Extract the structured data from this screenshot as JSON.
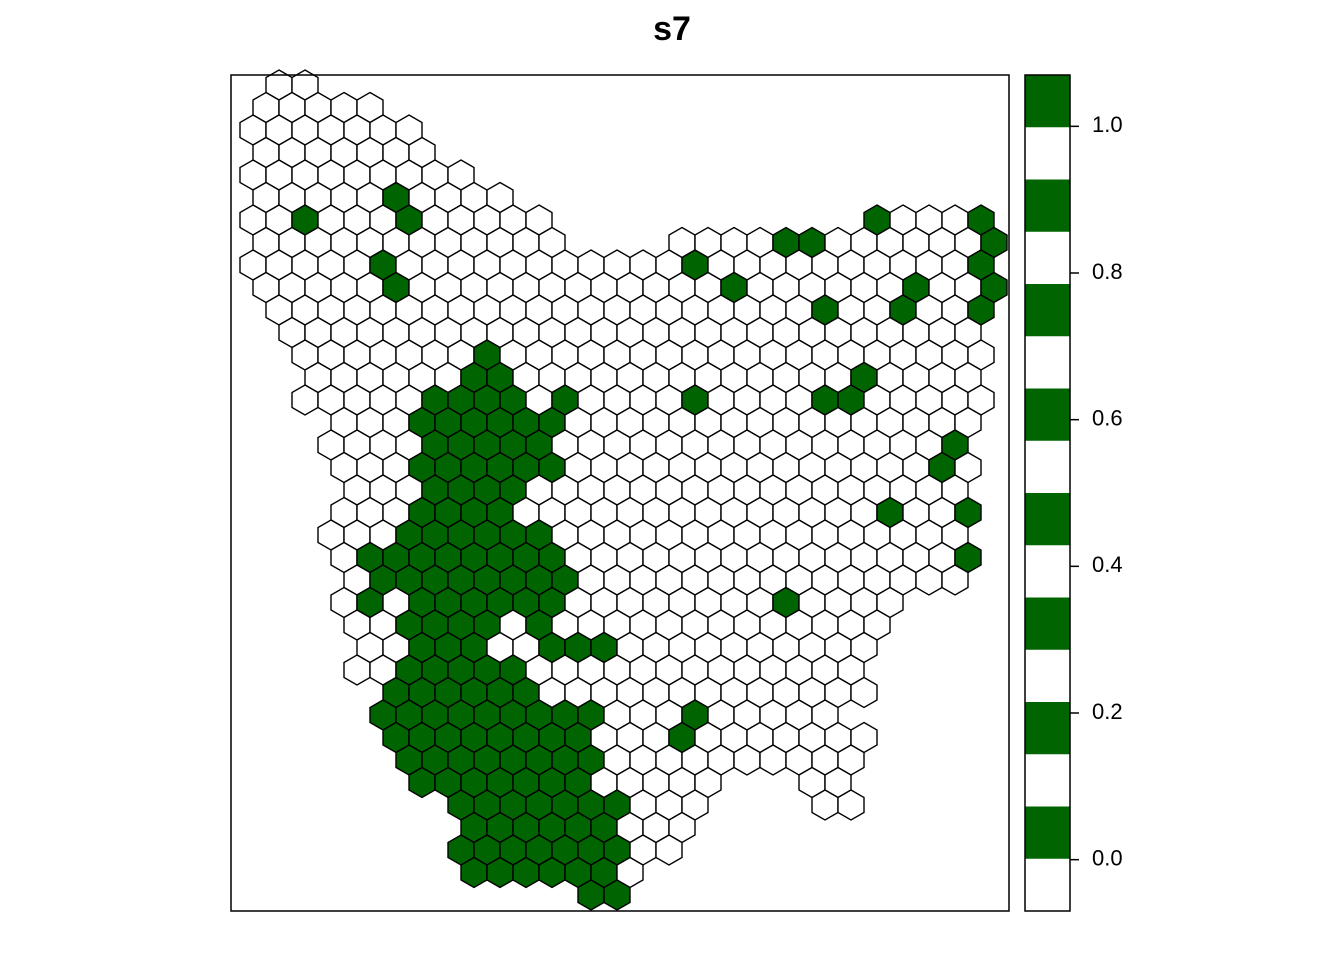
{
  "chart_data": {
    "type": "hexmap",
    "title": "s7",
    "colors": [
      "#ffffff",
      "#006400"
    ],
    "legend_colors": [
      "#ffffff",
      "#006400"
    ],
    "legend_bands": 16,
    "ylim": [
      -0.07,
      1.07
    ],
    "yticks": [
      {
        "value": 0,
        "label": "0.0"
      },
      0.2,
      0.4,
      0.6,
      0.8,
      {
        "value": 1,
        "label": "1.0"
      }
    ],
    "cells": [
      [
        null,
        0,
        0,
        null,
        null,
        null,
        null,
        null,
        null,
        null,
        null,
        null,
        null,
        null,
        null,
        null,
        null,
        null,
        null,
        null,
        null,
        null,
        null,
        null,
        null,
        null,
        null,
        null,
        null,
        null
      ],
      [
        0,
        0,
        0,
        0,
        0,
        null,
        null,
        null,
        null,
        null,
        null,
        null,
        null,
        null,
        null,
        null,
        null,
        null,
        null,
        null,
        null,
        null,
        null,
        null,
        null,
        null,
        null,
        null,
        null,
        null
      ],
      [
        0,
        0,
        0,
        0,
        0,
        0,
        0,
        null,
        null,
        null,
        null,
        null,
        null,
        null,
        null,
        null,
        null,
        null,
        null,
        null,
        null,
        null,
        null,
        null,
        null,
        null,
        null,
        null,
        null,
        null
      ],
      [
        0,
        0,
        0,
        0,
        0,
        0,
        0,
        null,
        null,
        null,
        null,
        null,
        null,
        null,
        null,
        null,
        null,
        null,
        null,
        null,
        null,
        null,
        null,
        null,
        null,
        null,
        null,
        null,
        null,
        null
      ],
      [
        0,
        0,
        0,
        0,
        0,
        0,
        0,
        0,
        0,
        null,
        null,
        null,
        null,
        null,
        null,
        null,
        null,
        null,
        null,
        null,
        null,
        null,
        null,
        null,
        null,
        null,
        null,
        null,
        null,
        null
      ],
      [
        0,
        0,
        0,
        0,
        0,
        1,
        0,
        0,
        0,
        0,
        null,
        null,
        null,
        null,
        null,
        null,
        null,
        null,
        null,
        null,
        null,
        null,
        null,
        null,
        null,
        null,
        null,
        null,
        null,
        null
      ],
      [
        0,
        0,
        1,
        0,
        0,
        0,
        1,
        0,
        0,
        0,
        0,
        0,
        null,
        null,
        null,
        null,
        null,
        null,
        null,
        null,
        null,
        null,
        null,
        null,
        1,
        0,
        0,
        0,
        1,
        null
      ],
      [
        0,
        0,
        0,
        0,
        0,
        0,
        0,
        0,
        0,
        0,
        0,
        0,
        null,
        null,
        null,
        null,
        0,
        0,
        0,
        0,
        1,
        1,
        0,
        0,
        0,
        0,
        0,
        0,
        1,
        null
      ],
      [
        0,
        0,
        0,
        0,
        0,
        1,
        0,
        0,
        0,
        0,
        0,
        0,
        0,
        0,
        0,
        0,
        0,
        1,
        0,
        0,
        0,
        0,
        0,
        0,
        0,
        0,
        0,
        0,
        1,
        null
      ],
      [
        0,
        0,
        0,
        0,
        0,
        1,
        0,
        0,
        0,
        0,
        0,
        0,
        0,
        0,
        0,
        0,
        0,
        0,
        1,
        0,
        0,
        0,
        0,
        0,
        0,
        1,
        0,
        0,
        1,
        null
      ],
      [
        null,
        0,
        0,
        0,
        0,
        0,
        0,
        0,
        0,
        0,
        0,
        0,
        0,
        0,
        0,
        0,
        0,
        0,
        0,
        0,
        0,
        0,
        1,
        0,
        0,
        1,
        0,
        0,
        1,
        null
      ],
      [
        null,
        0,
        0,
        0,
        0,
        0,
        0,
        0,
        0,
        0,
        0,
        0,
        0,
        0,
        0,
        0,
        0,
        0,
        0,
        0,
        0,
        0,
        0,
        0,
        0,
        0,
        0,
        0,
        null,
        null
      ],
      [
        null,
        null,
        0,
        0,
        0,
        0,
        0,
        0,
        0,
        1,
        0,
        0,
        0,
        0,
        0,
        0,
        0,
        0,
        0,
        0,
        0,
        0,
        0,
        0,
        0,
        0,
        0,
        0,
        0,
        null
      ],
      [
        null,
        null,
        0,
        0,
        0,
        0,
        0,
        0,
        1,
        1,
        0,
        0,
        0,
        0,
        0,
        0,
        0,
        0,
        0,
        0,
        0,
        0,
        0,
        1,
        0,
        0,
        0,
        0,
        null,
        null
      ],
      [
        null,
        null,
        0,
        0,
        0,
        0,
        0,
        1,
        1,
        1,
        1,
        0,
        1,
        0,
        0,
        0,
        0,
        1,
        0,
        0,
        0,
        0,
        1,
        1,
        0,
        0,
        0,
        0,
        0,
        null
      ],
      [
        null,
        null,
        null,
        0,
        0,
        0,
        1,
        1,
        1,
        1,
        1,
        1,
        0,
        0,
        0,
        0,
        0,
        0,
        0,
        0,
        0,
        0,
        0,
        0,
        0,
        0,
        0,
        0,
        null,
        null
      ],
      [
        null,
        null,
        null,
        0,
        0,
        0,
        0,
        1,
        1,
        1,
        1,
        1,
        0,
        0,
        0,
        0,
        0,
        0,
        0,
        0,
        0,
        0,
        0,
        0,
        0,
        0,
        0,
        1,
        null,
        null
      ],
      [
        null,
        null,
        null,
        0,
        0,
        0,
        1,
        1,
        1,
        1,
        1,
        1,
        0,
        0,
        0,
        0,
        0,
        0,
        0,
        0,
        0,
        0,
        0,
        0,
        0,
        0,
        1,
        0,
        null,
        null
      ],
      [
        null,
        null,
        null,
        null,
        0,
        0,
        0,
        1,
        1,
        1,
        1,
        0,
        0,
        0,
        0,
        0,
        0,
        0,
        0,
        0,
        0,
        0,
        0,
        0,
        0,
        0,
        0,
        0,
        null,
        null
      ],
      [
        null,
        null,
        null,
        0,
        0,
        0,
        1,
        1,
        1,
        1,
        0,
        0,
        0,
        0,
        0,
        0,
        0,
        0,
        0,
        0,
        0,
        0,
        0,
        0,
        1,
        0,
        0,
        1,
        null,
        null
      ],
      [
        null,
        null,
        null,
        0,
        0,
        0,
        1,
        1,
        1,
        1,
        1,
        1,
        0,
        0,
        0,
        0,
        0,
        0,
        0,
        0,
        0,
        0,
        0,
        0,
        0,
        0,
        0,
        0,
        null,
        null
      ],
      [
        null,
        null,
        null,
        0,
        1,
        1,
        1,
        1,
        1,
        1,
        1,
        1,
        0,
        0,
        0,
        0,
        0,
        0,
        0,
        0,
        0,
        0,
        0,
        0,
        0,
        0,
        0,
        1,
        null,
        null
      ],
      [
        null,
        null,
        null,
        null,
        0,
        1,
        1,
        1,
        1,
        1,
        1,
        1,
        1,
        0,
        0,
        0,
        0,
        0,
        0,
        0,
        0,
        0,
        0,
        0,
        0,
        0,
        0,
        0,
        null,
        null
      ],
      [
        null,
        null,
        null,
        0,
        1,
        0,
        1,
        1,
        1,
        1,
        1,
        1,
        0,
        0,
        0,
        0,
        0,
        0,
        0,
        0,
        1,
        0,
        0,
        0,
        0,
        null,
        null,
        null,
        null,
        null
      ],
      [
        null,
        null,
        null,
        null,
        0,
        0,
        1,
        1,
        1,
        1,
        0,
        1,
        0,
        0,
        0,
        0,
        0,
        0,
        0,
        0,
        0,
        0,
        0,
        0,
        0,
        null,
        null,
        null,
        null,
        null
      ],
      [
        null,
        null,
        null,
        null,
        0,
        0,
        1,
        1,
        1,
        0,
        0,
        1,
        1,
        1,
        0,
        0,
        0,
        0,
        0,
        0,
        0,
        0,
        0,
        0,
        null,
        null,
        null,
        null,
        null,
        null
      ],
      [
        null,
        null,
        null,
        null,
        0,
        0,
        1,
        1,
        1,
        1,
        1,
        0,
        0,
        0,
        0,
        0,
        0,
        0,
        0,
        0,
        0,
        0,
        0,
        0,
        null,
        null,
        null,
        null,
        null,
        null
      ],
      [
        null,
        null,
        null,
        null,
        null,
        1,
        1,
        1,
        1,
        1,
        1,
        0,
        0,
        0,
        0,
        0,
        0,
        0,
        0,
        0,
        0,
        0,
        0,
        0,
        null,
        null,
        null,
        null,
        null,
        null
      ],
      [
        null,
        null,
        null,
        null,
        null,
        1,
        1,
        1,
        1,
        1,
        1,
        1,
        1,
        1,
        0,
        0,
        0,
        1,
        0,
        0,
        0,
        0,
        0,
        null,
        null,
        null,
        null,
        null,
        null,
        null
      ],
      [
        null,
        null,
        null,
        null,
        null,
        1,
        1,
        1,
        1,
        1,
        1,
        1,
        1,
        0,
        0,
        0,
        1,
        0,
        0,
        0,
        0,
        0,
        0,
        0,
        null,
        null,
        null,
        null,
        null,
        null
      ],
      [
        null,
        null,
        null,
        null,
        null,
        null,
        1,
        1,
        1,
        1,
        1,
        1,
        1,
        1,
        0,
        0,
        0,
        0,
        0,
        0,
        0,
        0,
        0,
        0,
        null,
        null,
        null,
        null,
        null,
        null
      ],
      [
        null,
        null,
        null,
        null,
        null,
        null,
        1,
        1,
        1,
        1,
        1,
        1,
        1,
        0,
        0,
        0,
        0,
        0,
        null,
        null,
        null,
        0,
        0,
        null,
        null,
        null,
        null,
        null,
        null,
        null
      ],
      [
        null,
        null,
        null,
        null,
        null,
        null,
        null,
        null,
        1,
        1,
        1,
        1,
        1,
        1,
        1,
        0,
        0,
        0,
        null,
        null,
        null,
        null,
        0,
        0,
        null,
        null,
        null,
        null,
        null,
        null
      ],
      [
        null,
        null,
        null,
        null,
        null,
        null,
        null,
        null,
        1,
        1,
        1,
        1,
        1,
        1,
        0,
        0,
        0,
        null,
        null,
        null,
        null,
        null,
        null,
        null,
        null,
        null,
        null,
        null,
        null,
        null
      ],
      [
        null,
        null,
        null,
        null,
        null,
        null,
        null,
        null,
        1,
        1,
        1,
        1,
        1,
        1,
        1,
        0,
        0,
        null,
        null,
        null,
        null,
        null,
        null,
        null,
        null,
        null,
        null,
        null,
        null,
        null
      ],
      [
        null,
        null,
        null,
        null,
        null,
        null,
        null,
        null,
        1,
        1,
        1,
        1,
        1,
        1,
        0,
        null,
        null,
        null,
        null,
        null,
        null,
        null,
        null,
        null,
        null,
        null,
        null,
        null,
        null,
        null
      ],
      [
        null,
        null,
        null,
        null,
        null,
        null,
        null,
        null,
        null,
        null,
        null,
        null,
        null,
        1,
        1,
        null,
        null,
        null,
        null,
        null,
        null,
        null,
        null,
        null,
        null,
        null,
        null,
        null,
        null,
        null
      ]
    ]
  }
}
